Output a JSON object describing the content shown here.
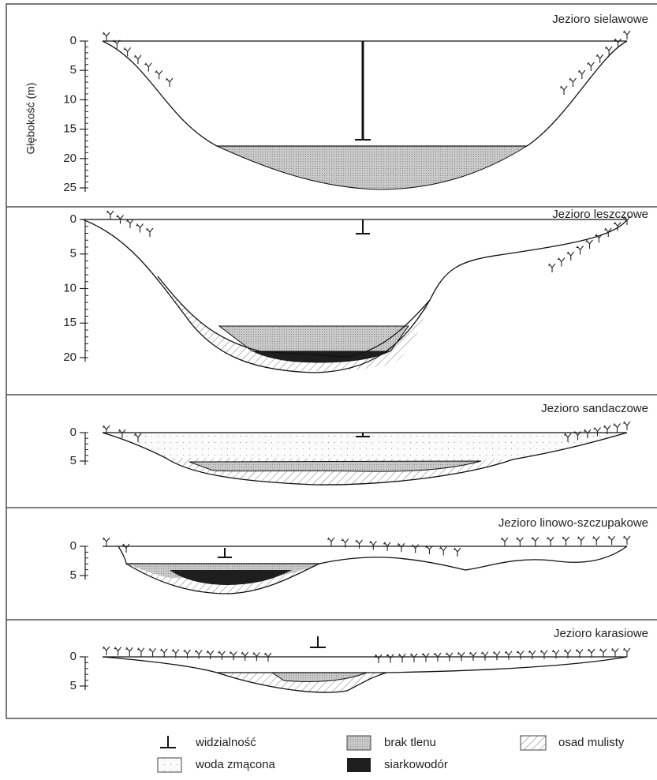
{
  "y_axis_label": "Głębokość (m)",
  "panels": [
    {
      "title": "Jezioro sielawowe",
      "yticks": [
        0,
        5,
        10,
        15,
        20,
        25
      ]
    },
    {
      "title": "Jezioro leszczowe",
      "yticks": [
        0,
        5,
        10,
        15,
        20
      ]
    },
    {
      "title": "Jezioro sandaczowe",
      "yticks": [
        0,
        5
      ]
    },
    {
      "title": "Jezioro linowo-szczupakowe",
      "yticks": [
        0,
        5
      ]
    },
    {
      "title": "Jezioro karasiowe",
      "yticks": [
        0,
        5
      ]
    }
  ],
  "legend": [
    {
      "label": "widzialność"
    },
    {
      "label": "woda zmącona"
    },
    {
      "label": "brak tlenu"
    },
    {
      "label": "siarkowodór"
    },
    {
      "label": "osad mulisty"
    }
  ]
}
